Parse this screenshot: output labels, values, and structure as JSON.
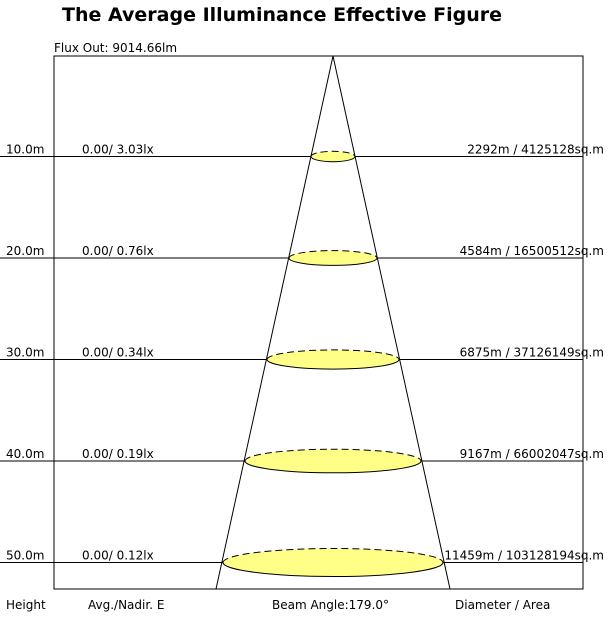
{
  "chart_data": {
    "type": "illuminance_cone",
    "title": "The Average Illuminance Effective Figure",
    "flux_out": "Flux Out: 9014.66lm",
    "beam_angle": "Beam Angle:179.0°",
    "footer": {
      "height": "Height",
      "avg": "Avg./Nadir. E",
      "diam": "Diameter / Area"
    },
    "height_max": 50,
    "rows": [
      {
        "h": 10,
        "height_label": "10.0m",
        "lux_label": "0.00/ 3.03lx",
        "diam_label": "2292m / 4125128sq.m",
        "avg_lx": 0.0,
        "nadir_lx": 3.03,
        "diameter_m": 2292,
        "area_sqm": 4125128
      },
      {
        "h": 20,
        "height_label": "20.0m",
        "lux_label": "0.00/ 0.76lx",
        "diam_label": "4584m / 16500512sq.m",
        "avg_lx": 0.0,
        "nadir_lx": 0.76,
        "diameter_m": 4584,
        "area_sqm": 16500512
      },
      {
        "h": 30,
        "height_label": "30.0m",
        "lux_label": "0.00/ 0.34lx",
        "diam_label": "6875m / 37126149sq.m",
        "avg_lx": 0.0,
        "nadir_lx": 0.34,
        "diameter_m": 6875,
        "area_sqm": 37126149
      },
      {
        "h": 40,
        "height_label": "40.0m",
        "lux_label": "0.00/ 0.19lx",
        "diam_label": "9167m / 66002047sq.m",
        "avg_lx": 0.0,
        "nadir_lx": 0.19,
        "diameter_m": 9167,
        "area_sqm": 66002047
      },
      {
        "h": 50,
        "height_label": "50.0m",
        "lux_label": "0.00/ 0.12lx",
        "diam_label": "11459m / 103128194sq.m",
        "avg_lx": 0.0,
        "nadir_lx": 0.12,
        "diameter_m": 11459,
        "area_sqm": 103128194
      }
    ],
    "colors": {
      "ellipse_fill": "#ffff88",
      "line": "#000000"
    }
  }
}
